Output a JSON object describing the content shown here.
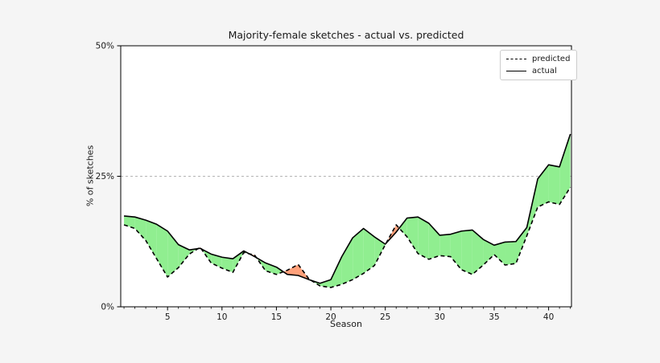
{
  "figure": {
    "background": "#f5f5f5",
    "plot_background": "#ffffff",
    "frame_color": "#000000"
  },
  "chart_data": {
    "type": "line",
    "title": "Majority-female sketches - actual vs. predicted",
    "xlabel": "Season",
    "ylabel": "% of sketches",
    "x": [
      1,
      2,
      3,
      4,
      5,
      6,
      7,
      8,
      9,
      10,
      11,
      12,
      13,
      14,
      15,
      16,
      17,
      18,
      19,
      20,
      21,
      22,
      23,
      24,
      25,
      26,
      27,
      28,
      29,
      30,
      31,
      32,
      33,
      34,
      35,
      36,
      37,
      38,
      39,
      40,
      41,
      42
    ],
    "series": [
      {
        "name": "predicted",
        "style": "dashed",
        "color": "#000000",
        "values": [
          15.7,
          15.0,
          12.7,
          9.2,
          5.7,
          7.5,
          10.1,
          11.4,
          8.4,
          7.4,
          6.6,
          10.4,
          9.9,
          6.9,
          6.2,
          7.0,
          8.1,
          5.3,
          4.0,
          3.7,
          4.3,
          5.2,
          6.4,
          7.9,
          11.9,
          15.7,
          13.4,
          10.2,
          9.1,
          9.8,
          9.6,
          7.1,
          6.2,
          8.0,
          10.0,
          8.0,
          8.3,
          13.6,
          19.1,
          20.1,
          19.6,
          22.9
        ]
      },
      {
        "name": "actual",
        "style": "solid",
        "color": "#000000",
        "values": [
          17.4,
          17.2,
          16.6,
          15.8,
          14.5,
          11.9,
          10.9,
          11.2,
          10.1,
          9.5,
          9.2,
          10.7,
          9.6,
          8.4,
          7.6,
          6.2,
          6.0,
          5.2,
          4.5,
          5.2,
          9.6,
          13.2,
          15.0,
          13.4,
          12.0,
          14.3,
          17.0,
          17.2,
          16.0,
          13.7,
          13.9,
          14.5,
          14.7,
          12.9,
          11.8,
          12.4,
          12.5,
          15.2,
          24.5,
          27.2,
          26.8,
          33.1
        ]
      }
    ],
    "fill_between": {
      "above_color": "#90EE90",
      "below_color": "#FFA07A",
      "rule": "green where actual > predicted, salmon where predicted > actual"
    },
    "xlim": [
      0.7,
      42.1
    ],
    "ylim": [
      0,
      50
    ],
    "xticks": [
      5,
      10,
      15,
      20,
      25,
      30,
      35,
      40
    ],
    "xminor_step": 1,
    "yticks": [
      {
        "value": 0,
        "label": "0%"
      },
      {
        "value": 25,
        "label": "25%"
      },
      {
        "value": 50,
        "label": "50%"
      }
    ],
    "grid": {
      "y_values": [
        25
      ],
      "style": "dashed",
      "color": "#b5b5b5"
    },
    "legend": {
      "position": "upper right",
      "entries": [
        "predicted",
        "actual"
      ]
    }
  }
}
